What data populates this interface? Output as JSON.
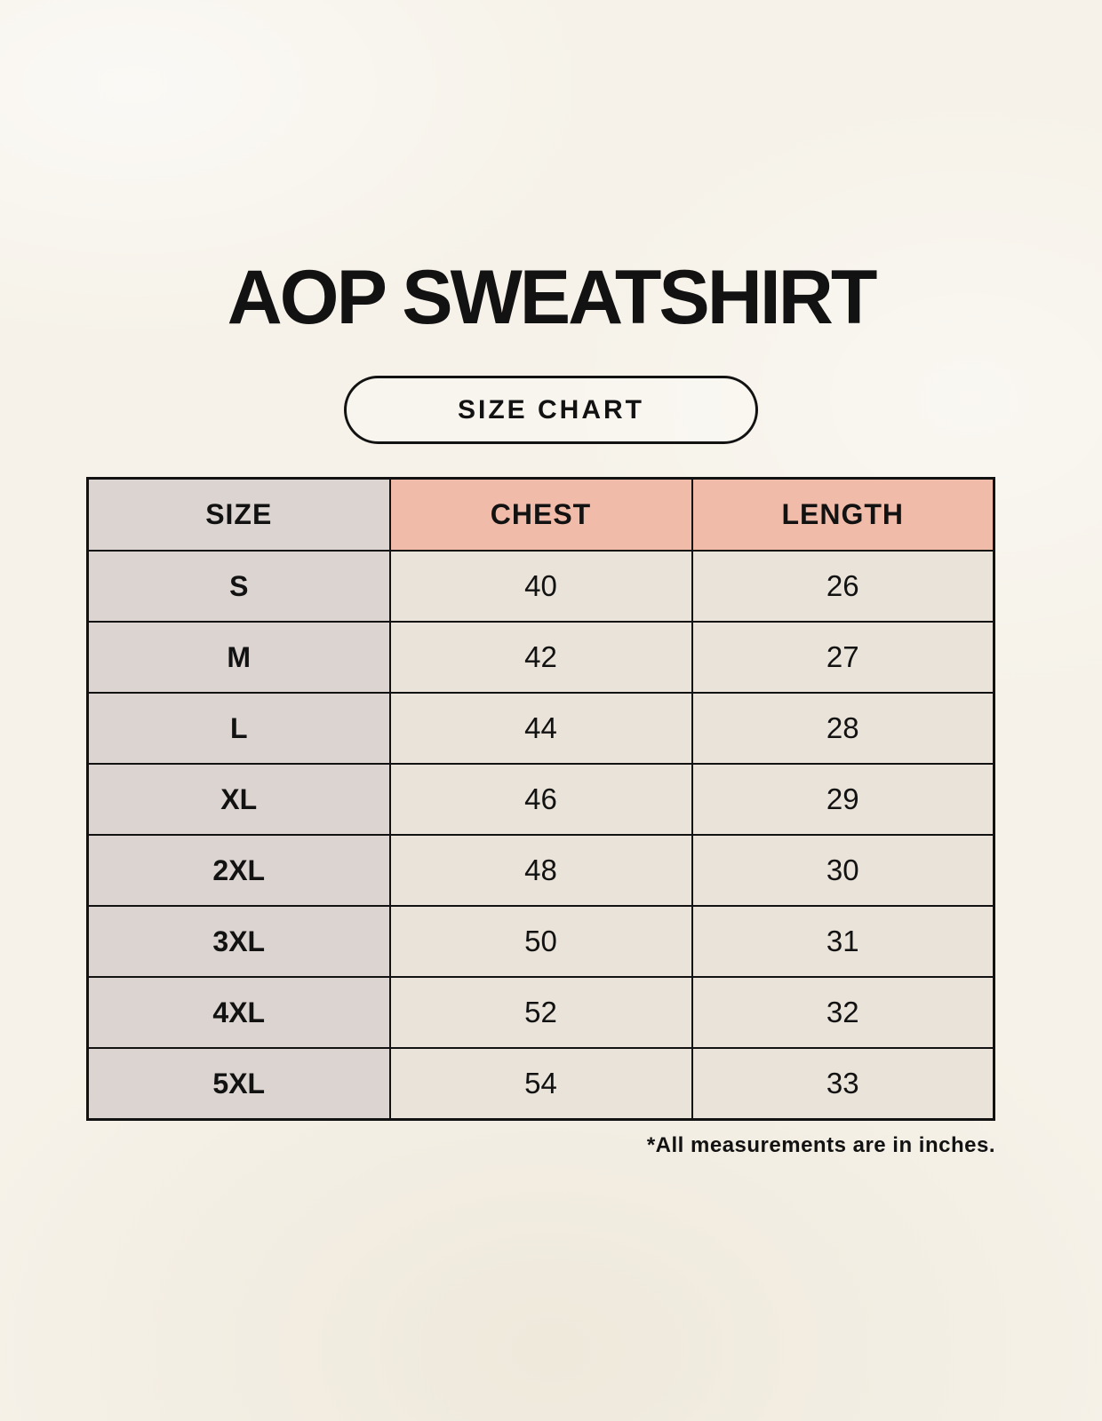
{
  "title": "AOP SWEATSHIRT",
  "size_chart_button": "SIZE CHART",
  "table": {
    "headers": {
      "size": "SIZE",
      "chest": "CHEST",
      "length": "LENGTH"
    },
    "rows": [
      {
        "size": "S",
        "chest": "40",
        "length": "26"
      },
      {
        "size": "M",
        "chest": "42",
        "length": "27"
      },
      {
        "size": "L",
        "chest": "44",
        "length": "28"
      },
      {
        "size": "XL",
        "chest": "46",
        "length": "29"
      },
      {
        "size": "2XL",
        "chest": "48",
        "length": "30"
      },
      {
        "size": "3XL",
        "chest": "50",
        "length": "31"
      },
      {
        "size": "4XL",
        "chest": "52",
        "length": "32"
      },
      {
        "size": "5XL",
        "chest": "54",
        "length": "33"
      }
    ]
  },
  "footnote": "*All measurements are in inches.",
  "colors": {
    "background": "#F6F2E9",
    "size_column_gray": "#DBD4D0",
    "header_salmon": "#F0BBA8",
    "cell_cream": "#EAE3D9",
    "border_black": "#121212"
  }
}
